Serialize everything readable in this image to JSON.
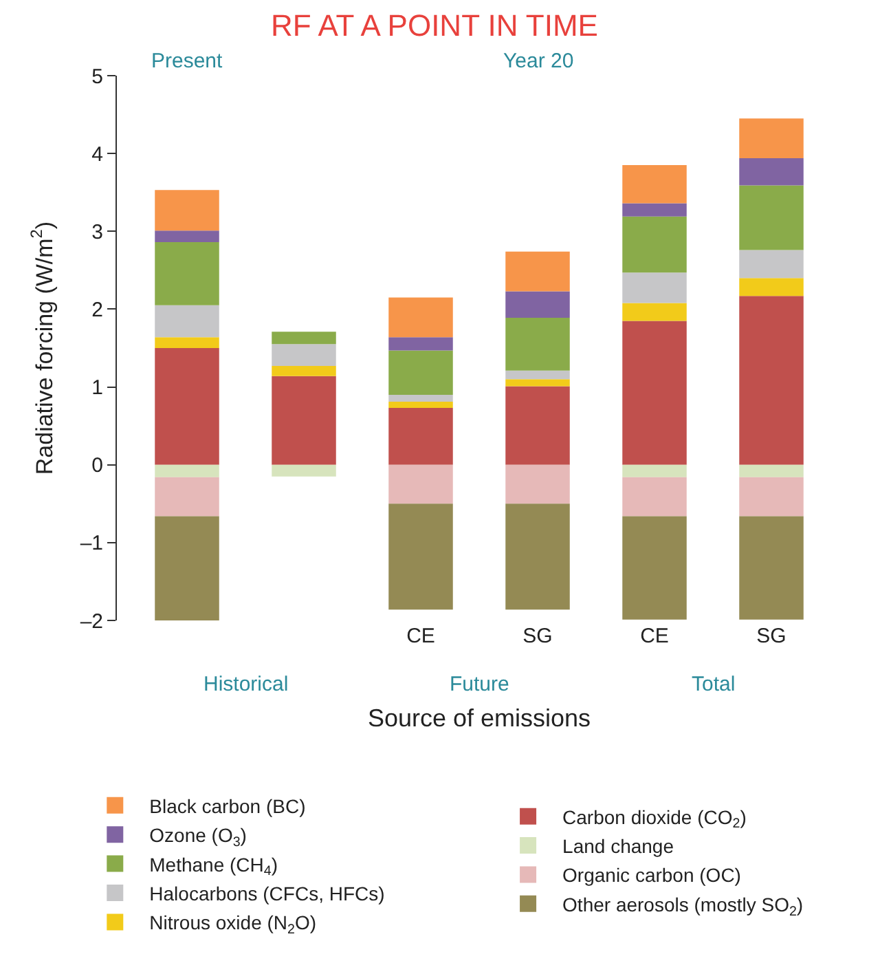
{
  "chart_data": {
    "type": "bar",
    "stacked": true,
    "title": "RF AT A POINT IN TIME",
    "xlabel": "Source of emissions",
    "ylabel": "Radiative forcing (W/m$^{2}$)",
    "categories": [
      null,
      null,
      "CE",
      "SG",
      "CE",
      "SG"
    ],
    "ylim": [
      -2,
      5
    ],
    "yticks": [
      {
        "value": -2,
        "label": "–2"
      },
      {
        "value": -1,
        "label": "–1"
      },
      0,
      1,
      2,
      3,
      4,
      5
    ],
    "grid": false,
    "legend": "bottom",
    "annotations": [
      "Present",
      "Year 20",
      "Historical",
      "Future",
      "Total"
    ],
    "series": [
      {
        "name": "Carbon dioxide (CO$_{2}$)",
        "color": "#c0504d",
        "values": [
          1.5,
          1.14,
          0.73,
          1.01,
          1.85,
          2.17
        ]
      },
      {
        "name": "Nitrous oxide (N$_{2}$O)",
        "color": "#f2cb1a",
        "values": [
          0.14,
          0.13,
          0.08,
          0.09,
          0.23,
          0.23
        ]
      },
      {
        "name": "Halocarbons (CFCs, HFCs)",
        "color": "#c6c6c8",
        "values": [
          0.41,
          0.28,
          0.09,
          0.11,
          0.39,
          0.36
        ]
      },
      {
        "name": "Methane (CH$_{4}$)",
        "color": "#8aab4a",
        "values": [
          0.81,
          0.16,
          0.57,
          0.68,
          0.72,
          0.83
        ]
      },
      {
        "name": "Ozone (O$_{3}$)",
        "color": "#8064a2",
        "values": [
          0.15,
          null,
          0.17,
          0.34,
          0.17,
          0.35
        ]
      },
      {
        "name": "Black carbon (BC)",
        "color": "#f7954a",
        "values": [
          0.52,
          null,
          0.51,
          0.51,
          0.49,
          0.51
        ]
      },
      {
        "name": "Land change",
        "color": "#d7e4bd",
        "values": [
          -0.16,
          -0.15,
          null,
          null,
          -0.16,
          -0.16
        ]
      },
      {
        "name": "Organic carbon (OC)",
        "color": "#e6b9b8",
        "values": [
          -0.5,
          null,
          -0.5,
          -0.5,
          -0.5,
          -0.5
        ]
      },
      {
        "name": "Other aerosols (mostly SO$_{2}$)",
        "color": "#948a54",
        "values": [
          -1.34,
          null,
          -1.36,
          -1.36,
          -1.33,
          -1.33
        ]
      }
    ]
  }
}
